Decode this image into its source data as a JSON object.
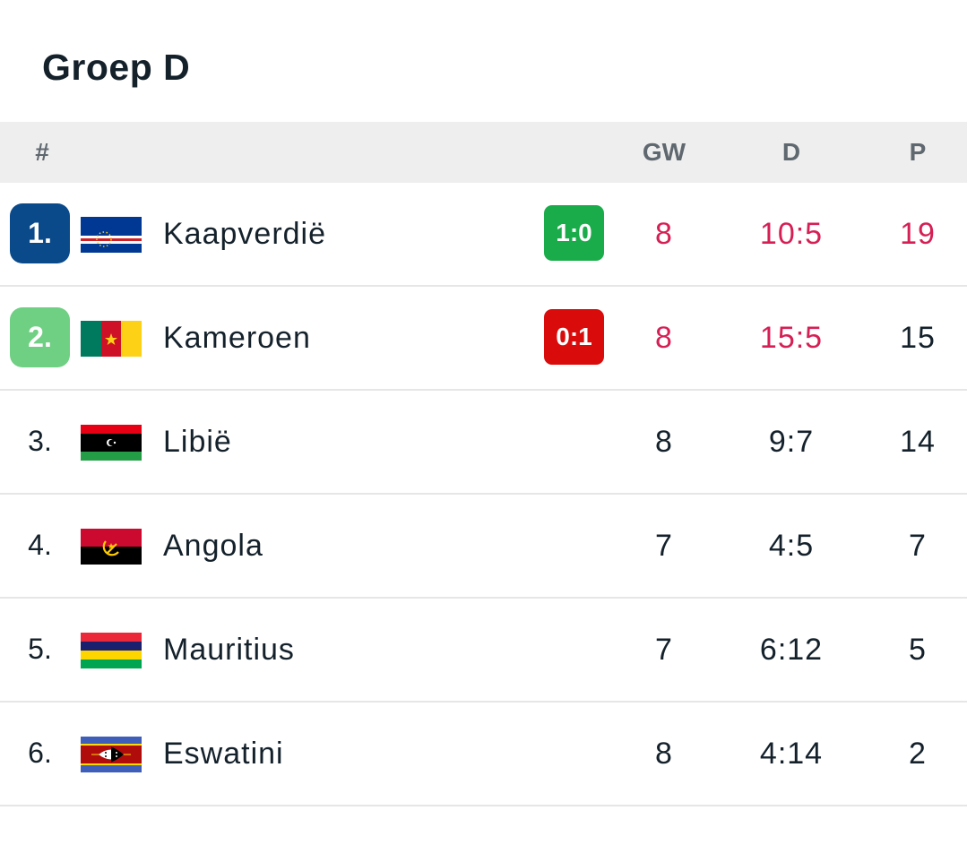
{
  "group": {
    "title": "Groep D"
  },
  "columns": {
    "rank": "#",
    "played": "GW",
    "goals": "D",
    "points": "P"
  },
  "colors": {
    "live_highlight": "#d61f54",
    "qual_1": "#0a4a8a",
    "qual_2": "#6fcf83",
    "win": "#1aac4a",
    "loss": "#d90b0b"
  },
  "rows": [
    {
      "rank": "1.",
      "team": "Kaapverdië",
      "flag": "cape-verde-flag",
      "live_score": "1:0",
      "live_result": "win",
      "played": "8",
      "goals": "10:5",
      "points": "19"
    },
    {
      "rank": "2.",
      "team": "Kameroen",
      "flag": "cameroon-flag",
      "live_score": "0:1",
      "live_result": "loss",
      "played": "8",
      "goals": "15:5",
      "points": "15"
    },
    {
      "rank": "3.",
      "team": "Libië",
      "flag": "libya-flag",
      "played": "8",
      "goals": "9:7",
      "points": "14"
    },
    {
      "rank": "4.",
      "team": "Angola",
      "flag": "angola-flag",
      "played": "7",
      "goals": "4:5",
      "points": "7"
    },
    {
      "rank": "5.",
      "team": "Mauritius",
      "flag": "mauritius-flag",
      "played": "7",
      "goals": "6:12",
      "points": "5"
    },
    {
      "rank": "6.",
      "team": "Eswatini",
      "flag": "eswatini-flag",
      "played": "8",
      "goals": "4:14",
      "points": "2"
    }
  ]
}
